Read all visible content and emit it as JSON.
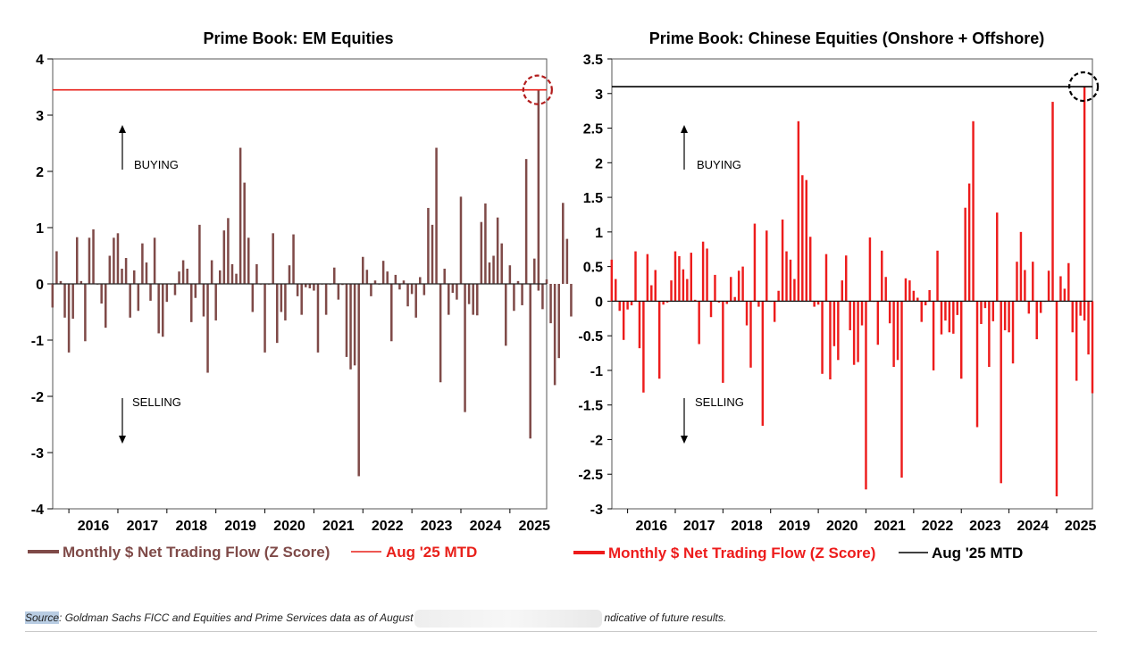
{
  "source": {
    "label": "Source",
    "text_before": ": Goldman Sachs FICC and Equities and Prime Services data as of August",
    "text_after": "ndicative of future results."
  },
  "chart_data": [
    {
      "type": "bar",
      "title": "Prime Book: EM Equities",
      "xlabel": "",
      "ylabel": "",
      "x_ticks": [
        "2016",
        "2017",
        "2018",
        "2019",
        "2020",
        "2021",
        "2022",
        "2023",
        "2024",
        "2025"
      ],
      "xlim": [
        2015.67,
        2025.75
      ],
      "ylim": [
        -4,
        4
      ],
      "y_ticks": [
        -4,
        -3,
        -2,
        -1,
        0,
        1,
        2,
        3,
        4
      ],
      "bar_color": "#7f4a48",
      "reference_color": "#e8201a",
      "circle_color": "#b21c1c",
      "annotations": [
        "BUYING",
        "SELLING"
      ],
      "legend": [
        {
          "label": "Monthly $ Net Trading Flow (Z Score)",
          "color": "#7f4a48",
          "style": "bar"
        },
        {
          "label": "Aug '25 MTD",
          "color": "#e8201a",
          "style": "line"
        }
      ],
      "series": [
        {
          "name": "Monthly $ Net Trading Flow (Z Score)",
          "start": "2015-09",
          "values": [
            -0.42,
            0.58,
            0.05,
            -0.6,
            -1.22,
            -0.62,
            0.83,
            0.05,
            -1.02,
            0.82,
            0.97,
            0.0,
            -0.35,
            -0.78,
            0.5,
            0.82,
            0.9,
            0.27,
            0.46,
            -0.6,
            0.24,
            -0.48,
            0.72,
            0.38,
            -0.3,
            0.82,
            -0.88,
            -0.94,
            -0.32,
            0.0,
            -0.2,
            0.22,
            0.42,
            0.27,
            -0.68,
            -0.25,
            1.05,
            -0.58,
            -1.58,
            0.42,
            -0.65,
            0.24,
            0.95,
            1.17,
            0.35,
            0.18,
            2.42,
            1.8,
            0.82,
            -0.5,
            0.35,
            0.0,
            -1.22,
            0.0,
            0.9,
            -1.05,
            -0.5,
            -0.65,
            0.33,
            0.88,
            -0.22,
            -0.55,
            -0.06,
            -0.08,
            -0.12,
            -1.22,
            0.0,
            -0.55,
            0.0,
            0.29,
            -0.28,
            -0.02,
            -1.3,
            -1.52,
            -1.45,
            -3.42,
            0.48,
            0.25,
            -0.22,
            0.06,
            0.0,
            0.41,
            0.22,
            -1.02,
            0.16,
            -0.1,
            0.06,
            -0.4,
            -0.18,
            -0.6,
            0.12,
            -0.2,
            1.35,
            1.05,
            2.42,
            -1.75,
            0.27,
            -0.55,
            -0.16,
            -0.28,
            1.55,
            -2.28,
            -0.36,
            -0.55,
            -0.56,
            1.1,
            1.43,
            0.38,
            0.5,
            1.18,
            0.72,
            -1.1,
            0.33,
            -0.48,
            0.05,
            -0.38,
            2.22,
            -2.75,
            0.45,
            -0.12,
            -0.45,
            0.08,
            -0.7,
            -1.8,
            -1.32,
            1.44,
            0.8,
            -0.58
          ]
        }
      ],
      "reference_line": {
        "label": "Aug '25 MTD",
        "date": "2025-08",
        "value": 3.45
      }
    },
    {
      "type": "bar",
      "title": "Prime Book: Chinese Equities (Onshore + Offshore)",
      "xlabel": "",
      "ylabel": "",
      "x_ticks": [
        "2016",
        "2017",
        "2018",
        "2019",
        "2020",
        "2021",
        "2022",
        "2023",
        "2024",
        "2025"
      ],
      "xlim": [
        2015.67,
        2025.75
      ],
      "ylim": [
        -3,
        3.5
      ],
      "y_ticks": [
        -3,
        -2.5,
        -2,
        -1.5,
        -1,
        -0.5,
        0,
        0.5,
        1,
        1.5,
        2,
        2.5,
        3,
        3.5
      ],
      "bar_color": "#ed1c1c",
      "reference_color": "#000000",
      "circle_color": "#000000",
      "annotations": [
        "BUYING",
        "SELLING"
      ],
      "legend": [
        {
          "label": "Monthly $ Net Trading Flow (Z Score)",
          "color": "#ed1c1c",
          "style": "bar"
        },
        {
          "label": "Aug '25 MTD",
          "color": "#000000",
          "style": "line"
        }
      ],
      "series": [
        {
          "name": "Monthly $ Net Trading Flow (Z Score)",
          "start": "2015-09",
          "values": [
            0.6,
            0.32,
            -0.14,
            -0.56,
            -0.12,
            -0.06,
            0.72,
            -0.68,
            -1.32,
            0.68,
            0.23,
            0.45,
            -1.12,
            -0.05,
            -0.02,
            0.3,
            0.72,
            0.65,
            0.46,
            0.32,
            0.7,
            0.02,
            -0.62,
            0.86,
            0.76,
            -0.23,
            0.38,
            -0.02,
            -1.18,
            -0.04,
            0.35,
            0.06,
            0.44,
            0.5,
            -0.35,
            -0.96,
            1.12,
            -0.08,
            -1.8,
            1.02,
            0.0,
            -0.3,
            0.15,
            1.18,
            0.72,
            0.6,
            0.32,
            2.6,
            1.82,
            1.75,
            0.93,
            -0.08,
            -0.05,
            -1.05,
            0.68,
            -1.13,
            -0.65,
            -0.85,
            0.3,
            0.66,
            -0.42,
            -0.92,
            -0.88,
            -0.35,
            -2.72,
            0.92,
            0.0,
            -0.63,
            0.73,
            0.35,
            -0.32,
            -0.95,
            -0.85,
            -2.55,
            0.33,
            0.3,
            0.15,
            0.05,
            -0.3,
            -0.06,
            0.16,
            -1.0,
            0.73,
            -0.48,
            -0.28,
            -0.45,
            -0.47,
            -0.2,
            -1.12,
            1.35,
            1.7,
            2.6,
            -1.82,
            -0.33,
            -0.1,
            -0.95,
            -0.29,
            1.28,
            -2.63,
            -0.42,
            -0.45,
            -0.9,
            0.57,
            1.0,
            0.45,
            -0.18,
            0.57,
            -0.55,
            -0.17,
            0.0,
            0.44,
            2.88,
            -2.82,
            0.36,
            0.18,
            0.55,
            -0.45,
            -1.15,
            -0.21,
            -0.28,
            -0.77,
            -1.33
          ]
        }
      ],
      "reference_line": {
        "label": "Aug '25 MTD",
        "date": "2025-08",
        "value": 3.1
      }
    }
  ]
}
